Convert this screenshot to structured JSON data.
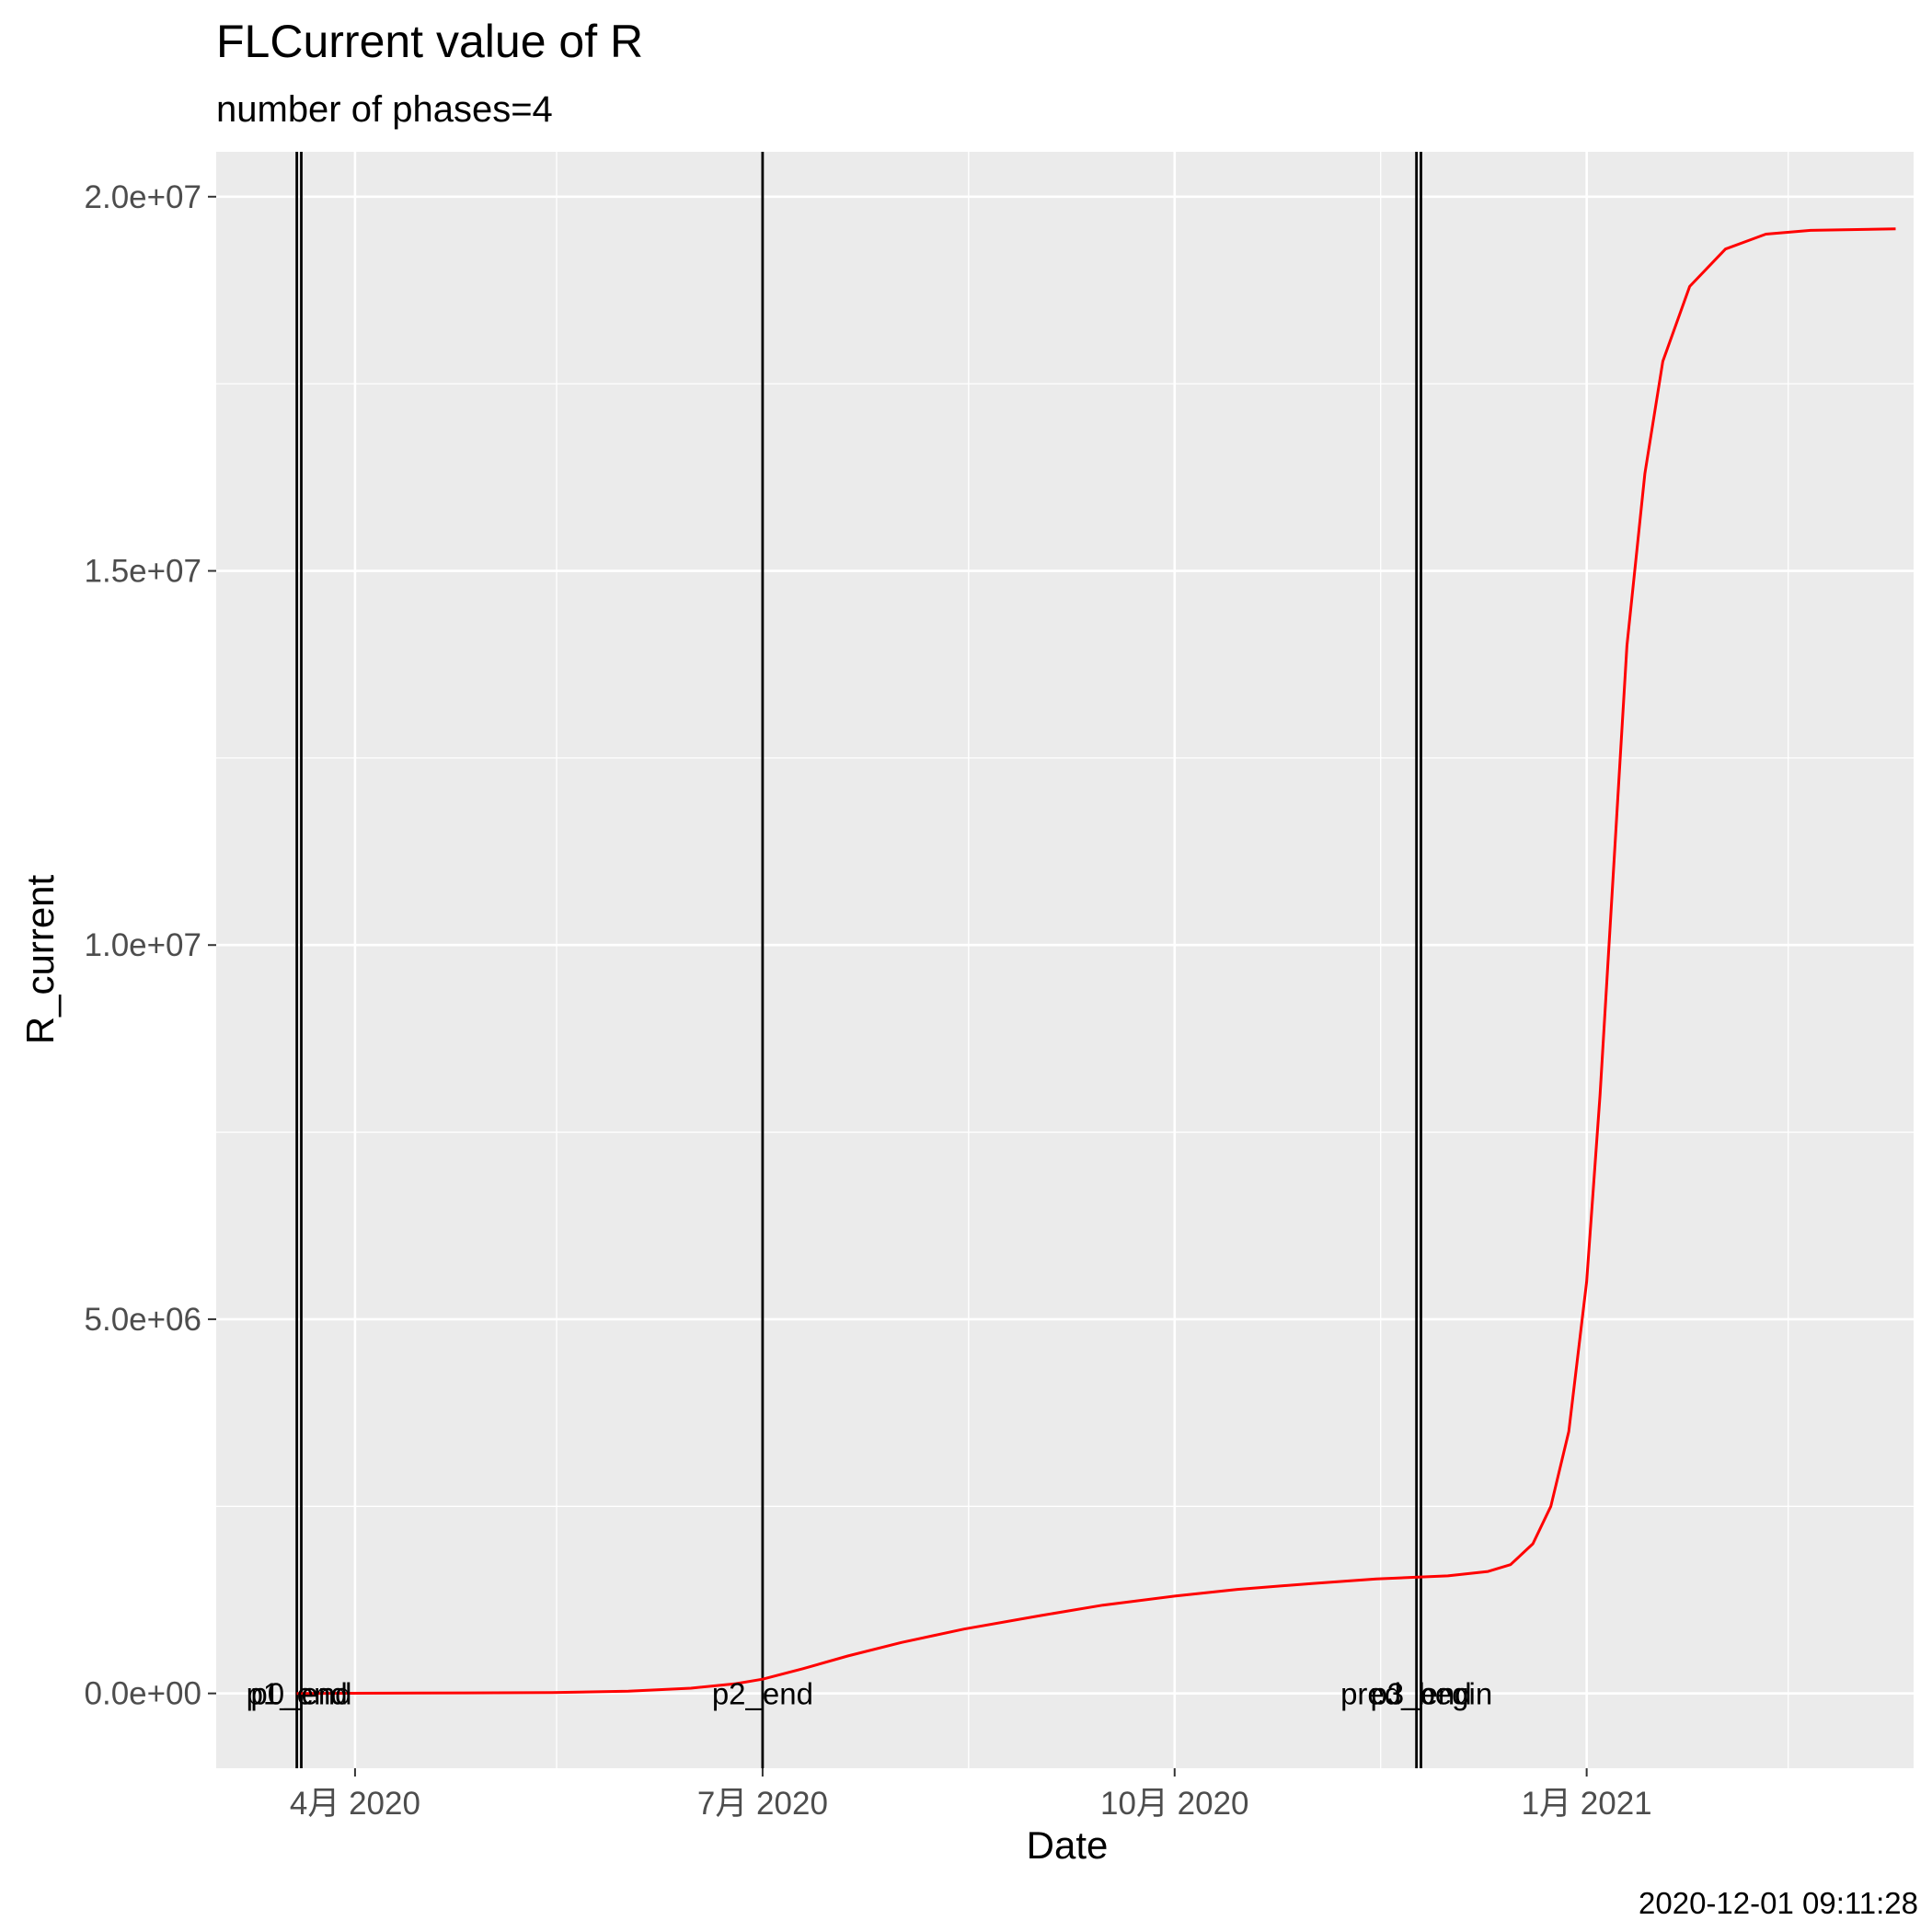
{
  "chart_data": {
    "type": "line",
    "title": "FLCurrent value of R",
    "subtitle": "number of phases=4",
    "xlabel": "Date",
    "ylabel": "R_current",
    "caption": "2020-12-01 09:11:28",
    "xlim": [
      "2020-03-01",
      "2021-03-15"
    ],
    "ylim": [
      -1000000,
      20600000
    ],
    "y_ticks": [
      {
        "value": 0,
        "label": "0.0e+00"
      },
      {
        "value": 5000000,
        "label": "5.0e+06"
      },
      {
        "value": 10000000,
        "label": "1.0e+07"
      },
      {
        "value": 15000000,
        "label": "1.5e+07"
      },
      {
        "value": 20000000,
        "label": "2.0e+07"
      }
    ],
    "x_ticks": [
      {
        "value": "2020-04-01",
        "label": "4月 2020"
      },
      {
        "value": "2020-07-01",
        "label": "7月 2020"
      },
      {
        "value": "2020-10-01",
        "label": "10月 2020"
      },
      {
        "value": "2021-01-01",
        "label": "1月 2021"
      }
    ],
    "x_minor_ticks": [
      "2020-05-16",
      "2020-08-16",
      "2020-11-16",
      "2021-02-15"
    ],
    "grid": true,
    "series": [
      {
        "color": "#ff0000",
        "points": [
          [
            "2020-03-19",
            0
          ],
          [
            "2020-04-15",
            5000
          ],
          [
            "2020-05-15",
            10000
          ],
          [
            "2020-06-01",
            30000
          ],
          [
            "2020-06-15",
            70000
          ],
          [
            "2020-06-25",
            130000
          ],
          [
            "2020-07-01",
            190000
          ],
          [
            "2020-07-10",
            330000
          ],
          [
            "2020-07-20",
            500000
          ],
          [
            "2020-08-01",
            680000
          ],
          [
            "2020-08-15",
            860000
          ],
          [
            "2020-09-01",
            1040000
          ],
          [
            "2020-09-15",
            1180000
          ],
          [
            "2020-10-01",
            1300000
          ],
          [
            "2020-10-15",
            1390000
          ],
          [
            "2020-11-01",
            1470000
          ],
          [
            "2020-11-15",
            1530000
          ],
          [
            "2020-12-01",
            1570000
          ],
          [
            "2020-12-10",
            1630000
          ],
          [
            "2020-12-15",
            1720000
          ],
          [
            "2020-12-20",
            2000000
          ],
          [
            "2020-12-24",
            2500000
          ],
          [
            "2020-12-28",
            3500000
          ],
          [
            "2021-01-01",
            5500000
          ],
          [
            "2021-01-04",
            8000000
          ],
          [
            "2021-01-07",
            11000000
          ],
          [
            "2021-01-10",
            14000000
          ],
          [
            "2021-01-14",
            16300000
          ],
          [
            "2021-01-18",
            17800000
          ],
          [
            "2021-01-24",
            18800000
          ],
          [
            "2021-02-01",
            19300000
          ],
          [
            "2021-02-10",
            19500000
          ],
          [
            "2021-02-20",
            19550000
          ],
          [
            "2021-03-11",
            19570000
          ]
        ]
      }
    ],
    "vlines": [
      {
        "date": "2020-03-19",
        "label": "p1_end"
      },
      {
        "date": "2020-03-20",
        "label": "p0_end"
      },
      {
        "date": "2020-07-01",
        "label": "p2_end"
      },
      {
        "date": "2020-11-24",
        "label": "pred_begin"
      },
      {
        "date": "2020-11-25",
        "label": "p3_end"
      }
    ],
    "vline_color": "#000000"
  }
}
